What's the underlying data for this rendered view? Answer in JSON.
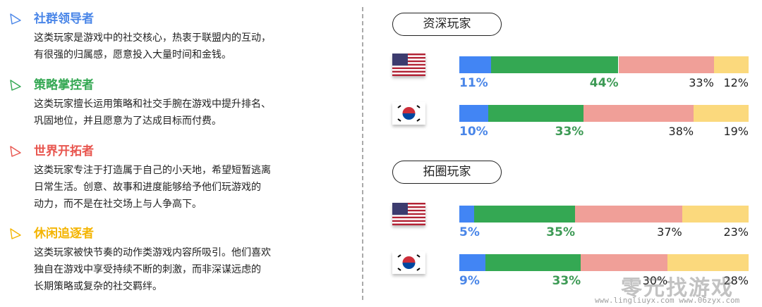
{
  "personas": [
    {
      "title": "社群领导者",
      "color": "#4a86e8",
      "lines": [
        "这类玩家是游戏中的社交核心，热衷于联盟内的互动，",
        "有很强的归属感，愿意投入大量时间和金钱。"
      ]
    },
    {
      "title": "策略掌控者",
      "color": "#34a853",
      "lines": [
        "这类玩家擅长运用策略和社交手腕在游戏中提升排名、",
        "巩固地位，并且愿意为了达成目标而付费。"
      ]
    },
    {
      "title": "世界开拓者",
      "color": "#e8554e",
      "lines": [
        "这类玩家专注于打造属于自己的小天地，希望短暂逃离",
        "日常生活。创意、故事和进度能够给予他们玩游戏的",
        "动力，而不是在社交场上与人争高下。"
      ]
    },
    {
      "title": "休闲追逐者",
      "color": "#f4b400",
      "lines": [
        "这类玩家被快节奏的动作类游戏内容所吸引。他们喜欢",
        "独自在游戏中享受持续不断的刺激，而非深谋远虑的",
        "长期策略或复杂的社交羁绊。"
      ]
    }
  ],
  "chart_data": {
    "type": "bar",
    "stacked": true,
    "orientation": "horizontal",
    "segment_colors": [
      "#4285f4",
      "#34a853",
      "#f09f98",
      "#fbd97d"
    ],
    "label_colors": [
      "#4a86e8",
      "#3d9a55",
      "#222222",
      "#222222"
    ],
    "groups": [
      {
        "title": "资深玩家",
        "rows": [
          {
            "country": "US",
            "flag": "us-flag",
            "values": [
              11,
              44,
              33,
              12
            ],
            "labels": [
              "11%",
              "44%",
              "33%",
              "12%"
            ]
          },
          {
            "country": "KR",
            "flag": "kr-flag",
            "values": [
              10,
              33,
              38,
              19
            ],
            "labels": [
              "10%",
              "33%",
              "38%",
              "19%"
            ]
          }
        ]
      },
      {
        "title": "拓圈玩家",
        "rows": [
          {
            "country": "US",
            "flag": "us-flag",
            "values": [
              5,
              35,
              37,
              23
            ],
            "labels": [
              "5%",
              "35%",
              "37%",
              "23%"
            ]
          },
          {
            "country": "KR",
            "flag": "kr-flag",
            "values": [
              9,
              33,
              30,
              28
            ],
            "labels": [
              "9%",
              "33%",
              "30%",
              "28%"
            ]
          }
        ]
      }
    ]
  },
  "watermark": {
    "text": "零元找游戏",
    "urls": "www.lingliuyx.com   www.06zyx.com"
  }
}
